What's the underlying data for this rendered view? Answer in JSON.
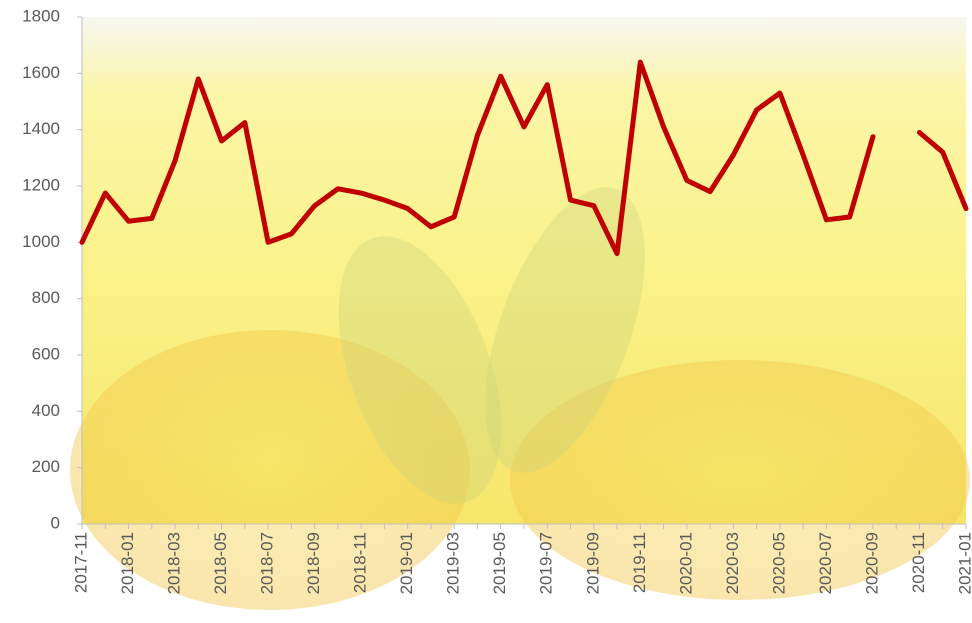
{
  "chart_data": {
    "type": "line",
    "categories": [
      "2017-11",
      null,
      "2018-01",
      null,
      "2018-03",
      null,
      "2018-05",
      null,
      "2018-07",
      null,
      "2018-09",
      null,
      "2018-11",
      null,
      "2019-01",
      null,
      "2019-03",
      null,
      "2019-05",
      null,
      "2019-07",
      null,
      "2019-09",
      null,
      "2019-11",
      null,
      "2020-01",
      null,
      "2020-03",
      null,
      "2020-05",
      null,
      "2020-07",
      null,
      "2020-09",
      null,
      "2020-11",
      null,
      "2021-01"
    ],
    "series": [
      {
        "color": "#c00000",
        "values": [
          1000,
          1175,
          1075,
          1085,
          1290,
          1580,
          1360,
          1425,
          1000,
          1030,
          1130,
          1190,
          1175,
          1150,
          1120,
          1055,
          1090,
          1380,
          1590,
          1410,
          1560,
          1150,
          1130,
          960,
          1640,
          1410,
          1220,
          1180,
          1310,
          1470,
          1530,
          1310,
          1080,
          1090,
          1375,
          null,
          1390,
          1320,
          1120
        ]
      }
    ],
    "ylim": [
      0,
      1800
    ],
    "yticks": [
      0,
      200,
      400,
      600,
      800,
      1000,
      1200,
      1400,
      1600,
      1800
    ],
    "grid": false
  }
}
